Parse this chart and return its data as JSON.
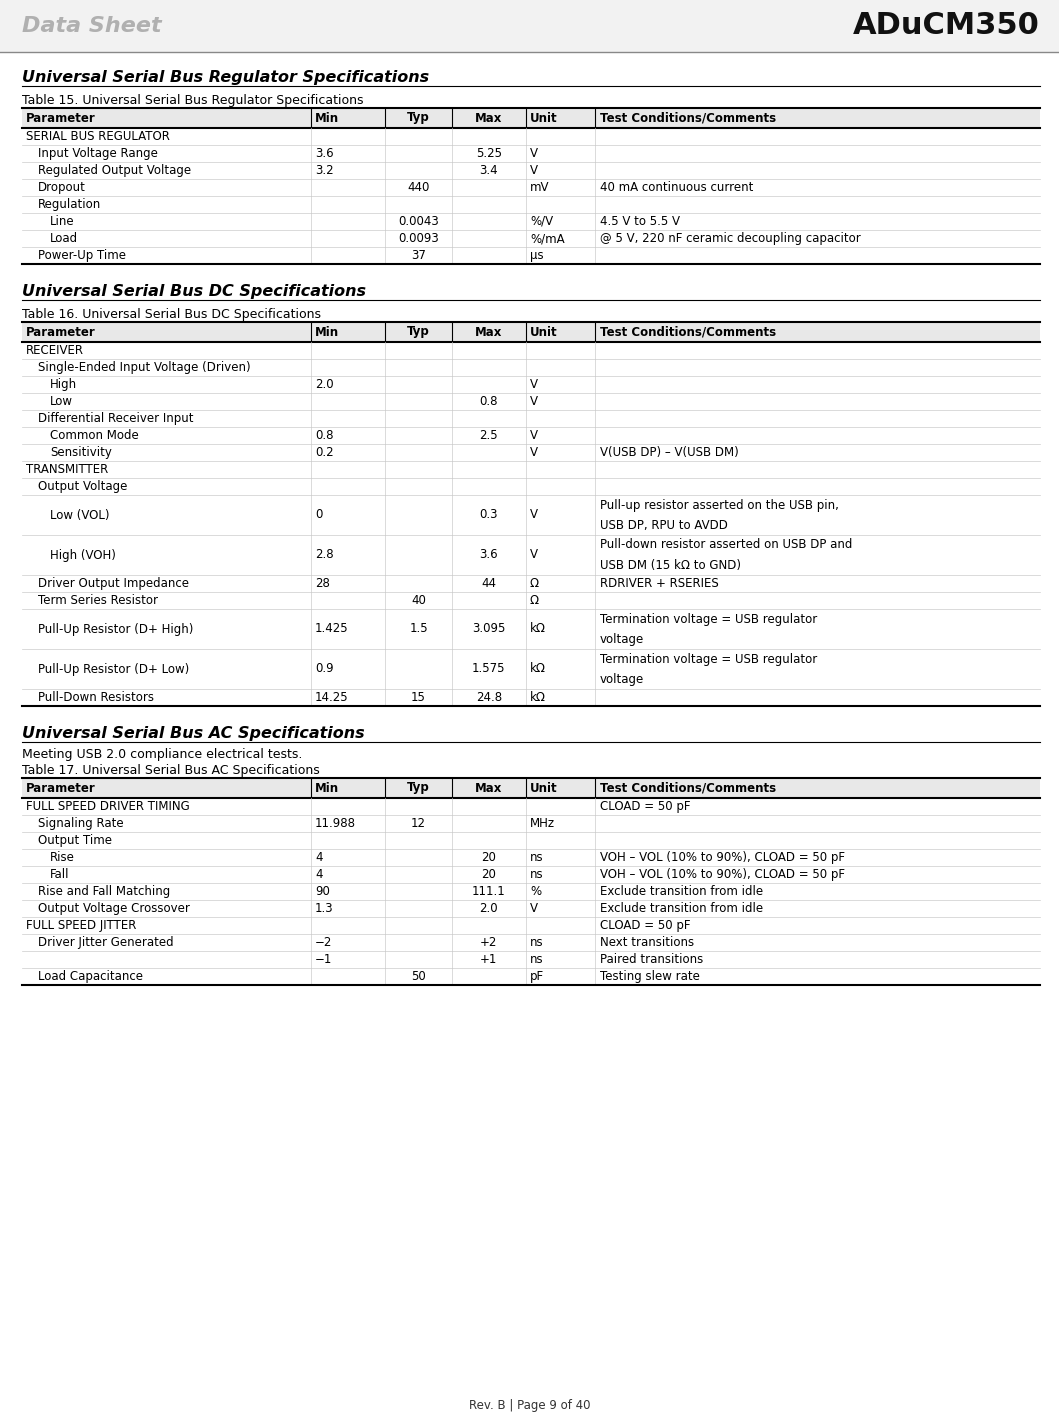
{
  "header_left": "Data Sheet",
  "header_right": "ADuCM350",
  "footer": "Rev. B | Page 9 of 40",
  "section1_title": "Universal Serial Bus Regulator Specifications",
  "table15_title": "Table 15. Universal Serial Bus Regulator Specifications",
  "table15_headers": [
    "Parameter",
    "Min",
    "Typ",
    "Max",
    "Unit",
    "Test Conditions/Comments"
  ],
  "table15_rows": [
    [
      "SERIAL BUS REGULATOR",
      "",
      "",
      "",
      "",
      ""
    ],
    [
      "  Input Voltage Range",
      "3.6",
      "",
      "5.25",
      "V",
      ""
    ],
    [
      "  Regulated Output Voltage",
      "3.2",
      "",
      "3.4",
      "V",
      ""
    ],
    [
      "  Dropout",
      "",
      "440",
      "",
      "mV",
      "40 mA continuous current"
    ],
    [
      "  Regulation",
      "",
      "",
      "",
      "",
      ""
    ],
    [
      "    Line",
      "",
      "0.0043",
      "",
      "%/V",
      "4.5 V to 5.5 V"
    ],
    [
      "    Load",
      "",
      "0.0093",
      "",
      "%/mA",
      "@ 5 V, 220 nF ceramic decoupling capacitor"
    ],
    [
      "  Power-Up Time",
      "",
      "37",
      "",
      "μs",
      ""
    ]
  ],
  "section2_title": "Universal Serial Bus DC Specifications",
  "table16_title": "Table 16. Universal Serial Bus DC Specifications",
  "table16_headers": [
    "Parameter",
    "Min",
    "Typ",
    "Max",
    "Unit",
    "Test Conditions/Comments"
  ],
  "table16_rows": [
    [
      "RECEIVER",
      "",
      "",
      "",
      "",
      ""
    ],
    [
      "  Single-Ended Input Voltage (Driven)",
      "",
      "",
      "",
      "",
      ""
    ],
    [
      "    High",
      "2.0",
      "",
      "",
      "V",
      ""
    ],
    [
      "    Low",
      "",
      "",
      "0.8",
      "V",
      ""
    ],
    [
      "  Differential Receiver Input",
      "",
      "",
      "",
      "",
      ""
    ],
    [
      "    Common Mode",
      "0.8",
      "",
      "2.5",
      "V",
      ""
    ],
    [
      "    Sensitivity",
      "0.2",
      "",
      "",
      "V",
      "V(USB DP) – V(USB DM)"
    ],
    [
      "TRANSMITTER",
      "",
      "",
      "",
      "",
      ""
    ],
    [
      "  Output Voltage",
      "",
      "",
      "",
      "",
      ""
    ],
    [
      "    Low (VOL)",
      "0",
      "",
      "0.3",
      "V",
      "Pull-up resistor asserted on the USB pin,\nUSB DP, RPU to AVDD"
    ],
    [
      "    High (VOH)",
      "2.8",
      "",
      "3.6",
      "V",
      "Pull-down resistor asserted on USB DP and\nUSB DM (15 kΩ to GND)"
    ],
    [
      "  Driver Output Impedance",
      "28",
      "",
      "44",
      "Ω",
      "RDRIVER + RSERIES"
    ],
    [
      "  Term Series Resistor",
      "",
      "40",
      "",
      "Ω",
      ""
    ],
    [
      "  Pull-Up Resistor (D+ High)",
      "1.425",
      "1.5",
      "3.095",
      "kΩ",
      "Termination voltage = USB regulator\nvoltage"
    ],
    [
      "  Pull-Up Resistor (D+ Low)",
      "0.9",
      "",
      "1.575",
      "kΩ",
      "Termination voltage = USB regulator\nvoltage"
    ],
    [
      "  Pull-Down Resistors",
      "14.25",
      "15",
      "24.8",
      "kΩ",
      ""
    ]
  ],
  "section3_title": "Universal Serial Bus AC Specifications",
  "section3_subtitle": "Meeting USB 2.0 compliance electrical tests.",
  "table17_title": "Table 17. Universal Serial Bus AC Specifications",
  "table17_headers": [
    "Parameter",
    "Min",
    "Typ",
    "Max",
    "Unit",
    "Test Conditions/Comments"
  ],
  "table17_rows": [
    [
      "FULL SPEED DRIVER TIMING",
      "",
      "",
      "",
      "",
      "CLOAD = 50 pF"
    ],
    [
      "  Signaling Rate",
      "11.988",
      "12",
      "",
      "MHz",
      ""
    ],
    [
      "  Output Time",
      "",
      "",
      "",
      "",
      ""
    ],
    [
      "    Rise",
      "4",
      "",
      "20",
      "ns",
      "VOH – VOL (10% to 90%), CLOAD = 50 pF"
    ],
    [
      "    Fall",
      "4",
      "",
      "20",
      "ns",
      "VOH – VOL (10% to 90%), CLOAD = 50 pF"
    ],
    [
      "  Rise and Fall Matching",
      "90",
      "",
      "111.1",
      "%",
      "Exclude transition from idle"
    ],
    [
      "  Output Voltage Crossover",
      "1.3",
      "",
      "2.0",
      "V",
      "Exclude transition from idle"
    ],
    [
      "FULL SPEED JITTER",
      "",
      "",
      "",
      "",
      "CLOAD = 50 pF"
    ],
    [
      "  Driver Jitter Generated",
      "−2",
      "",
      "+2",
      "ns",
      "Next transitions"
    ],
    [
      "",
      "−1",
      "",
      "+1",
      "ns",
      "Paired transitions"
    ],
    [
      "  Load Capacitance",
      "",
      "50",
      "",
      "pF",
      "Testing slew rate"
    ]
  ],
  "page_bg": "#ffffff"
}
